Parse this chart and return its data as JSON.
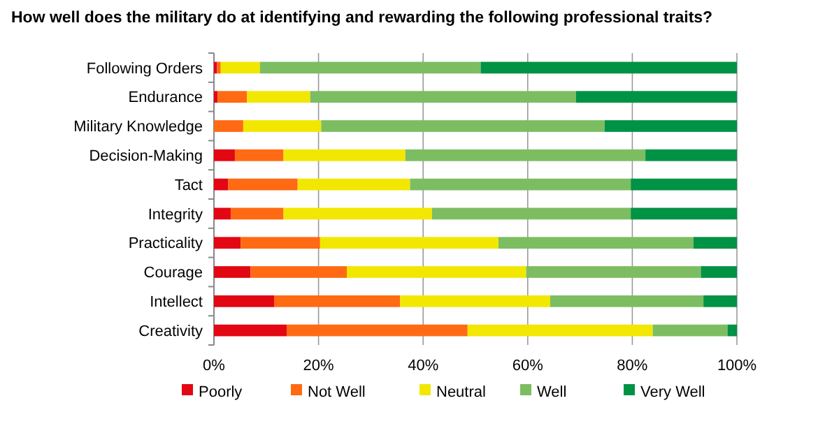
{
  "chart_data": {
    "type": "bar",
    "orientation": "horizontal",
    "stacked": true,
    "title": "How well does the military do at identifying and rewarding the following professional traits?",
    "categories": [
      "Following Orders",
      "Endurance",
      "Military Knowledge",
      "Decision-Making",
      "Tact",
      "Integrity",
      "Practicality",
      "Courage",
      "Intellect",
      "Creativity"
    ],
    "series": [
      {
        "name": "Poorly",
        "color": "#e30613",
        "values": [
          0.6,
          0.7,
          0,
          4.0,
          2.7,
          3.2,
          5.1,
          7.0,
          11.5,
          13.9
        ]
      },
      {
        "name": "Not Well",
        "color": "#ff6a13",
        "values": [
          0.7,
          5.6,
          5.6,
          9.3,
          13.3,
          10.1,
          15.2,
          18.4,
          24.1,
          34.6
        ]
      },
      {
        "name": "Neutral",
        "color": "#f2e700",
        "values": [
          7.5,
          12.1,
          14.9,
          23.3,
          21.5,
          28.4,
          34.1,
          34.3,
          28.7,
          35.4
        ]
      },
      {
        "name": "Well",
        "color": "#7dbd62",
        "values": [
          42.2,
          50.8,
          54.2,
          45.9,
          42.2,
          38.0,
          37.3,
          33.4,
          29.3,
          14.3
        ]
      },
      {
        "name": "Very Well",
        "color": "#009245",
        "values": [
          49.0,
          30.8,
          25.3,
          17.5,
          20.3,
          20.3,
          8.3,
          6.9,
          6.4,
          1.8
        ]
      }
    ],
    "xlim": [
      0,
      100
    ],
    "xticks": [
      {
        "value": 0,
        "label": "0%"
      },
      {
        "value": 20,
        "label": "20%"
      },
      {
        "value": 40,
        "label": "40%"
      },
      {
        "value": 60,
        "label": "60%"
      },
      {
        "value": 80,
        "label": "80%"
      },
      {
        "value": 100,
        "label": "100%"
      }
    ],
    "grid": "x",
    "legend": "bottom"
  }
}
